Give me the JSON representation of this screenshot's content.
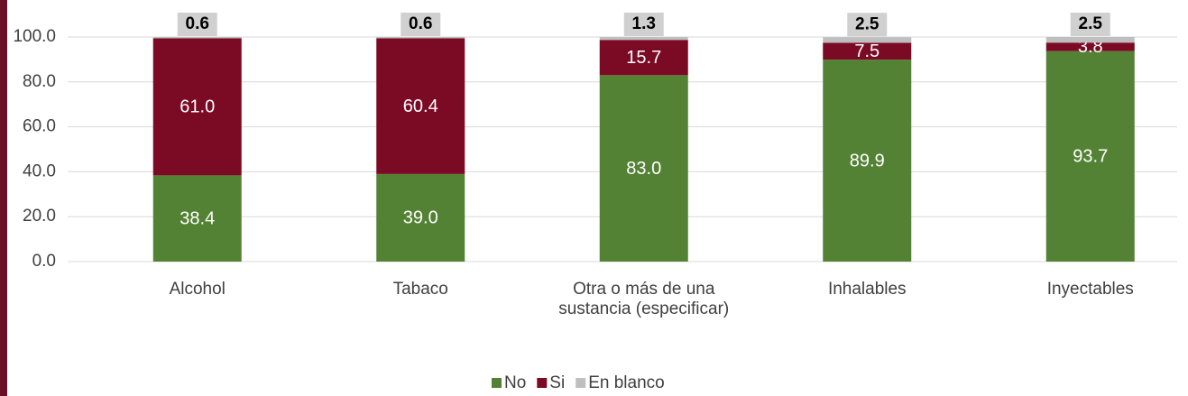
{
  "chart_data": {
    "type": "stacked_bar",
    "categories": [
      "Alcohol",
      "Tabaco",
      "Otra o más de una sustancia (especificar)",
      "Inhalables",
      "Inyectables"
    ],
    "series": [
      {
        "name": "No",
        "color": "#548235",
        "values": [
          38.4,
          39.0,
          83.0,
          89.9,
          93.7
        ],
        "value_labels": [
          "38.4",
          "39.0",
          "83.0",
          "89.9",
          "93.7"
        ]
      },
      {
        "name": "Si",
        "color": "#7b0a24",
        "values": [
          61.0,
          60.4,
          15.7,
          7.5,
          3.8
        ],
        "value_labels": [
          "61.0",
          "60.4",
          "15.7",
          "7.5",
          "3.8"
        ]
      },
      {
        "name": "En blanco",
        "color": "#bfbfbf",
        "values": [
          0.6,
          0.6,
          1.3,
          2.5,
          2.5
        ],
        "value_labels": [
          "0.6",
          "0.6",
          "1.3",
          "2.5",
          "2.5"
        ]
      }
    ],
    "ylim": [
      0,
      100
    ],
    "yticks": [
      {
        "value": 0,
        "label": "0.0"
      },
      {
        "value": 20,
        "label": "20.0"
      },
      {
        "value": 40,
        "label": "40.0"
      },
      {
        "value": 60,
        "label": "60.0"
      },
      {
        "value": 80,
        "label": "80.0"
      },
      {
        "value": 100,
        "label": "100.0"
      }
    ],
    "grid": true,
    "legend": "bottom"
  }
}
